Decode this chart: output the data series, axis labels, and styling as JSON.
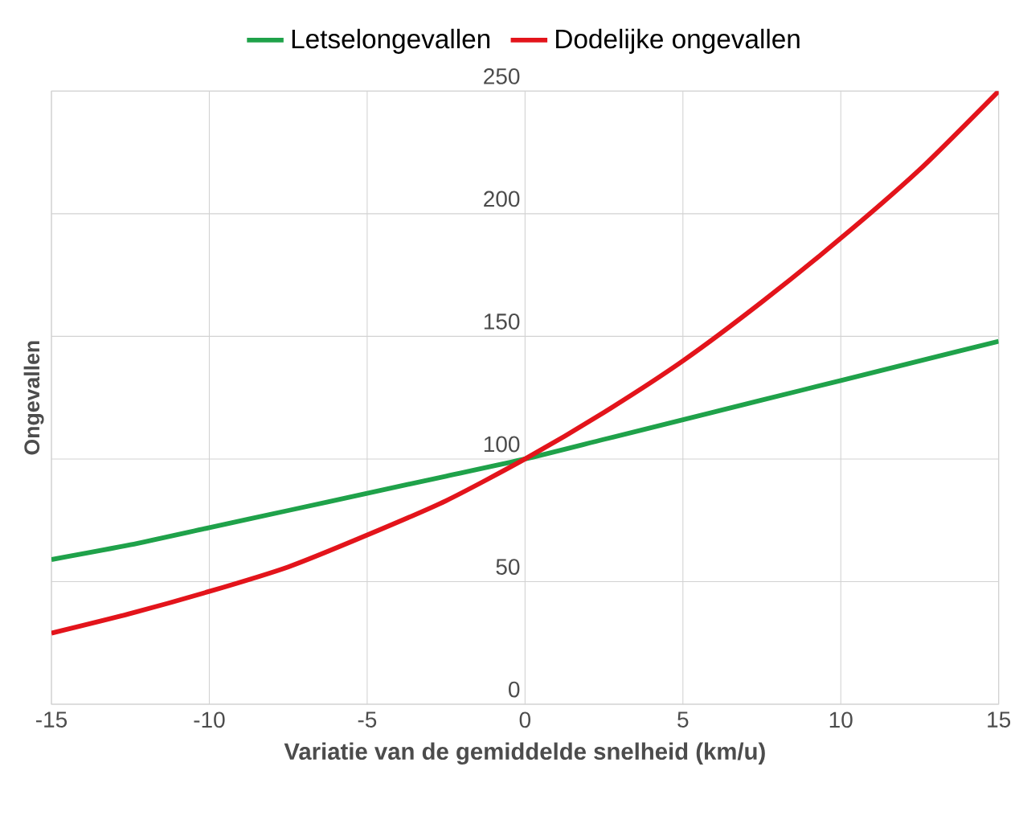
{
  "chart_data": {
    "type": "line",
    "xlabel": "Variatie van de gemiddelde snelheid (km/u)",
    "ylabel": "Ongevallen",
    "xlim": [
      -15,
      15
    ],
    "ylim": [
      0,
      250
    ],
    "xticks": [
      -15,
      -10,
      -5,
      0,
      5,
      10,
      15
    ],
    "yticks": [
      0,
      50,
      100,
      150,
      200,
      250
    ],
    "grid": true,
    "legend": "top",
    "x": [
      -15,
      -12.5,
      -10,
      -7.5,
      -5,
      -2.5,
      0,
      2.5,
      5,
      7.5,
      10,
      12.5,
      15
    ],
    "series": [
      {
        "name": "Letselongevallen",
        "color": "#1fa24a",
        "values": [
          59,
          65,
          72,
          79,
          86,
          93,
          100,
          108,
          116,
          124,
          132,
          140,
          148
        ]
      },
      {
        "name": "Dodelijke ongevallen",
        "color": "#e3141b",
        "values": [
          29,
          37,
          46,
          56,
          69,
          83,
          100,
          119,
          140,
          164,
          190,
          218,
          250
        ]
      }
    ]
  }
}
